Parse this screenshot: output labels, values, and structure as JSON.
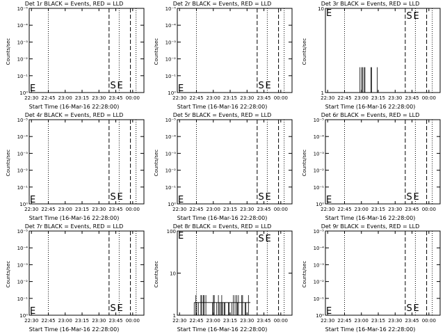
{
  "chart_data": [
    {
      "type": "line",
      "title": "Det 1r BLACK = Events, RED = LLD",
      "xlabel": "Start Time (16-Mar-16 22:28:00)",
      "ylabel": "Counts/sec",
      "scale": "log",
      "yticks": [
        "10⁰",
        "10⁻¹",
        "10⁻²",
        "10⁻³",
        "10⁻⁴",
        "10⁻⁵"
      ],
      "xticks": [
        "22:30",
        "22:45",
        "23:00",
        "23:15",
        "23:30",
        "23:45",
        "00:00"
      ],
      "markers": [
        "E",
        "S",
        "E"
      ],
      "series": []
    },
    {
      "type": "line",
      "title": "Det 2r BLACK = Events, RED = LLD",
      "xlabel": "Start Time (16-Mar-16 22:28:00)",
      "ylabel": "Counts/sec",
      "scale": "log",
      "yticks": [
        "10⁰",
        "10⁻¹",
        "10⁻²",
        "10⁻³",
        "10⁻⁴",
        "10⁻⁵"
      ],
      "xticks": [
        "22:30",
        "22:45",
        "23:00",
        "23:15",
        "23:30",
        "23:45",
        "00:00"
      ],
      "markers": [
        "E",
        "S",
        "E"
      ],
      "series": []
    },
    {
      "type": "line",
      "title": "Det 3r BLACK = Events, RED = LLD",
      "xlabel": "Start Time (16-Mar-16 22:28:00)",
      "ylabel": "Counts/sec",
      "scale": "log",
      "yticks": [
        "1",
        "10"
      ],
      "xticks": [
        "22:30",
        "22:45",
        "23:00",
        "23:15",
        "23:30",
        "23:45",
        "00:00"
      ],
      "markers": [
        "E",
        "S",
        "E"
      ],
      "series": [
        {
          "name": "Events",
          "burst_start": "22:58",
          "burst_end": "23:10",
          "isolated": "23:14",
          "peak": 2
        }
      ]
    },
    {
      "type": "line",
      "title": "Det 4r BLACK = Events, RED = LLD",
      "xlabel": "Start Time (16-Mar-16 22:28:00)",
      "ylabel": "Counts/sec",
      "scale": "log",
      "yticks": [
        "10⁰",
        "10⁻¹",
        "10⁻²",
        "10⁻³",
        "10⁻⁴",
        "10⁻⁵"
      ],
      "xticks": [
        "22:30",
        "22:45",
        "23:00",
        "23:15",
        "23:30",
        "23:45",
        "00:00"
      ],
      "markers": [
        "E",
        "S",
        "E"
      ],
      "series": []
    },
    {
      "type": "line",
      "title": "Det 5r BLACK = Events, RED = LLD",
      "xlabel": "Start Time (16-Mar-16 22:28:00)",
      "ylabel": "Counts/sec",
      "scale": "log",
      "yticks": [
        "10⁰",
        "10⁻¹",
        "10⁻²",
        "10⁻³",
        "10⁻⁴",
        "10⁻⁵"
      ],
      "xticks": [
        "22:30",
        "22:45",
        "23:00",
        "23:15",
        "23:30",
        "23:45",
        "00:00"
      ],
      "markers": [
        "E",
        "S",
        "E"
      ],
      "series": []
    },
    {
      "type": "line",
      "title": "Det 6r BLACK = Events, RED = LLD",
      "xlabel": "Start Time (16-Mar-16 22:28:00)",
      "ylabel": "Counts/sec",
      "scale": "log",
      "yticks": [
        "10⁰",
        "10⁻¹",
        "10⁻²",
        "10⁻³",
        "10⁻⁴",
        "10⁻⁵"
      ],
      "xticks": [
        "22:30",
        "22:45",
        "23:00",
        "23:15",
        "23:30",
        "23:45",
        "00:00"
      ],
      "markers": [
        "E",
        "S",
        "E"
      ],
      "series": []
    },
    {
      "type": "line",
      "title": "Det 7r BLACK = Events, RED = LLD",
      "xlabel": "Start Time (16-Mar-16 22:28:00)",
      "ylabel": "Counts/sec",
      "scale": "log",
      "yticks": [
        "10⁰",
        "10⁻¹",
        "10⁻²",
        "10⁻³",
        "10⁻⁴",
        "10⁻⁵"
      ],
      "xticks": [
        "22:30",
        "22:45",
        "23:00",
        "23:15",
        "23:30",
        "23:45",
        "00:00"
      ],
      "markers": [
        "E",
        "S",
        "E"
      ],
      "series": []
    },
    {
      "type": "line",
      "title": "Det 8r BLACK = Events, RED = LLD",
      "xlabel": "Start Time (16-Mar-16 22:28:00)",
      "ylabel": "Counts/sec",
      "scale": "log",
      "yticks": [
        "1",
        "10",
        "100"
      ],
      "xticks": [
        "22:30",
        "22:45",
        "23:00",
        "23:15",
        "23:30",
        "23:45",
        "00:00"
      ],
      "markers": [
        "E",
        "S",
        "E"
      ],
      "series": [
        {
          "name": "Events",
          "burst_start": "22:43",
          "burst_end": "23:33",
          "peak": 3
        }
      ]
    },
    {
      "type": "line",
      "title": "Det 9r BLACK = Events, RED = LLD",
      "xlabel": "Start Time (16-Mar-16 22:28:00)",
      "ylabel": "Counts/sec",
      "scale": "log",
      "yticks": [
        "10⁰",
        "10⁻¹",
        "10⁻²",
        "10⁻³",
        "10⁻⁴",
        "10⁻⁵"
      ],
      "xticks": [
        "22:30",
        "22:45",
        "23:00",
        "23:15",
        "23:30",
        "23:45",
        "00:00"
      ],
      "markers": [
        "E",
        "S",
        "E"
      ],
      "series": []
    }
  ]
}
